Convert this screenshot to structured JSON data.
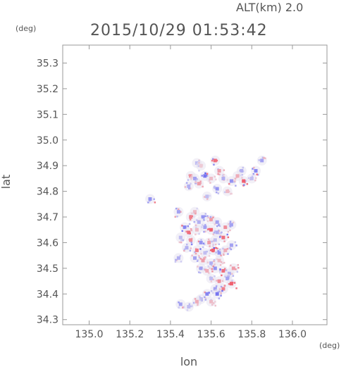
{
  "chart_data": {
    "type": "heatmap",
    "title": "2015/10/29 01:53:42",
    "altitude_label": "ALT(km) 2.0",
    "xlabel": "lon",
    "ylabel": "lat",
    "x_unit": "(deg)",
    "y_unit": "(deg)",
    "xlim": [
      134.87,
      136.17
    ],
    "ylim": [
      34.28,
      35.37
    ],
    "x_ticks": [
      "135.0",
      "135.2",
      "135.4",
      "135.6",
      "135.8",
      "136.0"
    ],
    "x_tick_values": [
      135.0,
      135.2,
      135.4,
      135.6,
      135.8,
      136.0
    ],
    "y_ticks": [
      "34.3",
      "34.4",
      "34.5",
      "34.6",
      "34.7",
      "34.8",
      "34.9",
      "35.0",
      "35.1",
      "35.2",
      "35.3"
    ],
    "y_tick_values": [
      34.3,
      34.4,
      34.5,
      34.6,
      34.7,
      34.8,
      34.9,
      35.0,
      35.1,
      35.2,
      35.3
    ],
    "grid": false,
    "colors": {
      "positive": "#f05060",
      "negative": "#5a5af0",
      "neutral": "#e8e4f0"
    },
    "points": [
      [
        135.53,
        34.91,
        -0.3
      ],
      [
        135.55,
        34.9,
        0.2
      ],
      [
        135.62,
        34.92,
        0.8
      ],
      [
        135.64,
        34.88,
        0.5
      ],
      [
        135.75,
        34.88,
        -0.4
      ],
      [
        135.82,
        34.88,
        -0.7
      ],
      [
        135.85,
        34.92,
        -0.5
      ],
      [
        135.5,
        34.86,
        0.6
      ],
      [
        135.52,
        34.85,
        -0.5
      ],
      [
        135.57,
        34.86,
        -0.8
      ],
      [
        135.6,
        34.85,
        0.3
      ],
      [
        135.66,
        34.85,
        -0.4
      ],
      [
        135.7,
        34.84,
        -0.6
      ],
      [
        135.73,
        34.86,
        0.4
      ],
      [
        135.76,
        34.84,
        0.9
      ],
      [
        135.8,
        34.85,
        -0.3
      ],
      [
        135.49,
        34.82,
        -0.4
      ],
      [
        135.54,
        34.83,
        0.5
      ],
      [
        135.63,
        34.81,
        -0.6
      ],
      [
        135.68,
        34.8,
        0.3
      ],
      [
        135.58,
        34.78,
        -0.3
      ],
      [
        135.3,
        34.77,
        -0.6
      ],
      [
        135.44,
        34.72,
        -0.5
      ],
      [
        135.52,
        34.72,
        0.3
      ],
      [
        135.56,
        34.7,
        -0.6
      ],
      [
        135.5,
        34.7,
        0.7
      ],
      [
        135.54,
        34.68,
        -0.4
      ],
      [
        135.6,
        34.69,
        0.5
      ],
      [
        135.63,
        34.68,
        -0.5
      ],
      [
        135.47,
        34.66,
        -0.7
      ],
      [
        135.49,
        34.64,
        0.8
      ],
      [
        135.53,
        34.65,
        0.3
      ],
      [
        135.57,
        34.66,
        -0.5
      ],
      [
        135.6,
        34.65,
        0.9
      ],
      [
        135.63,
        34.64,
        -0.4
      ],
      [
        135.67,
        34.66,
        0.6
      ],
      [
        135.7,
        34.67,
        -0.5
      ],
      [
        135.45,
        34.62,
        -0.3
      ],
      [
        135.5,
        34.61,
        0.6
      ],
      [
        135.55,
        34.6,
        -0.6
      ],
      [
        135.59,
        34.6,
        0.5
      ],
      [
        135.62,
        34.61,
        -0.3
      ],
      [
        135.66,
        34.62,
        0.8
      ],
      [
        135.7,
        34.59,
        -0.5
      ],
      [
        135.48,
        34.58,
        -0.4
      ],
      [
        135.53,
        34.57,
        0.7
      ],
      [
        135.57,
        34.56,
        -0.3
      ],
      [
        135.61,
        34.57,
        0.9
      ],
      [
        135.64,
        34.56,
        -0.6
      ],
      [
        135.67,
        34.57,
        0.4
      ],
      [
        135.52,
        34.54,
        -0.5
      ],
      [
        135.56,
        34.53,
        0.5
      ],
      [
        135.6,
        34.52,
        -0.4
      ],
      [
        135.64,
        34.53,
        0.3
      ],
      [
        135.44,
        34.54,
        -0.4
      ],
      [
        135.55,
        34.5,
        -0.5
      ],
      [
        135.58,
        34.49,
        0.4
      ],
      [
        135.62,
        34.5,
        -0.6
      ],
      [
        135.66,
        34.49,
        0.8
      ],
      [
        135.69,
        34.48,
        -0.4
      ],
      [
        135.71,
        34.5,
        0.5
      ],
      [
        135.6,
        34.46,
        -0.3
      ],
      [
        135.64,
        34.45,
        0.6
      ],
      [
        135.68,
        34.46,
        -0.5
      ],
      [
        135.7,
        34.44,
        0.9
      ],
      [
        135.62,
        34.42,
        -0.5
      ],
      [
        135.66,
        34.42,
        0.7
      ],
      [
        135.63,
        34.4,
        -0.8
      ],
      [
        135.58,
        34.4,
        -0.7
      ],
      [
        135.55,
        34.38,
        -0.4
      ],
      [
        135.6,
        34.37,
        0.3
      ],
      [
        135.45,
        34.36,
        -0.5
      ],
      [
        135.49,
        34.35,
        -0.3
      ],
      [
        135.53,
        34.37,
        0.4
      ]
    ]
  }
}
